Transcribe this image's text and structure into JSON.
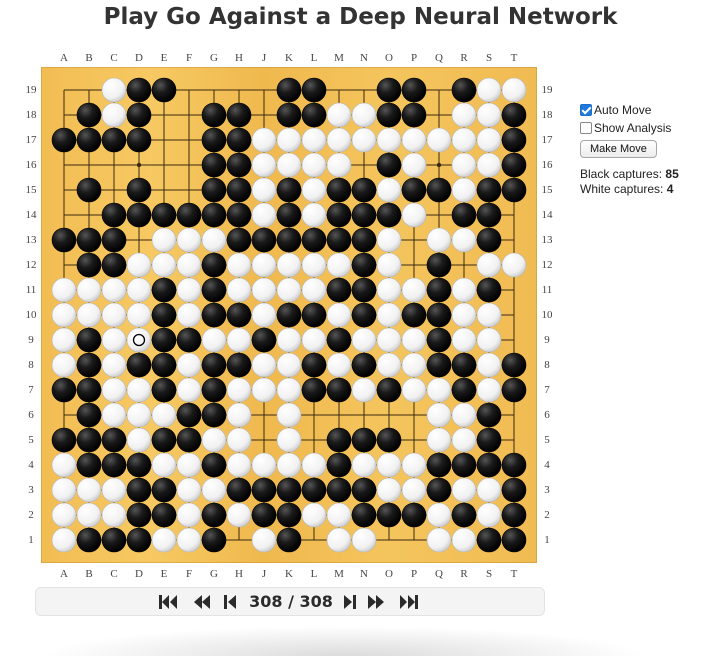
{
  "title": "Play Go Against a Deep Neural Network",
  "board": {
    "columns": [
      "A",
      "B",
      "C",
      "D",
      "E",
      "F",
      "G",
      "H",
      "J",
      "K",
      "L",
      "M",
      "N",
      "O",
      "P",
      "Q",
      "R",
      "S",
      "T"
    ],
    "rows": [
      "19",
      "18",
      "17",
      "16",
      "15",
      "14",
      "13",
      "12",
      "11",
      "10",
      "9",
      "8",
      "7",
      "6",
      "5",
      "4",
      "3",
      "2",
      "1"
    ],
    "stones": [
      "..WBB....BB..BB.BWW",
      ".BWB..BB.BBWWBB.WWB",
      "BBBB..BBWWWWWWWWWWB",
      "......BBWWWW.BW.WWB",
      ".B.B..BBWBWBBWBBWBB",
      "..BBBBBBWBWBBBW.BB.",
      "BBB.WWWBBBBBBW.WWB.",
      ".BBWWWBWWWWWBW.B.WW",
      "WWWWBWBWWWWBBWWBWB.",
      "WWWWBWBBWBBWBWBBWW.",
      "WBWWBBWWBWWBWWWBWW.",
      "WBWBBWBBWWBWBWWBBWB",
      "BBWWBWBWWWBBWBWWBWB",
      ".BWWWBBW.W.....WWB.",
      "BBBWBBWW.W.BBB.WWB.",
      "WBBBWWBWWWWBWWWBBBB",
      "WWWBBWWBBBBBBWWBWWB",
      "WWWBBWBWBBWWBBBWBWB",
      "WBBBWWB.WB.WW..WWBB"
    ],
    "last_move": "D9",
    "star_points": [
      "D4",
      "K4",
      "Q4",
      "D10",
      "K10",
      "Q10",
      "D16",
      "K16",
      "Q16"
    ],
    "colors": {
      "wood": "#f3c259",
      "line": "#3a2a10",
      "black": "#111111",
      "white": "#ffffff"
    }
  },
  "controls": {
    "auto_move_label": "Auto Move",
    "auto_move_checked": true,
    "show_analysis_label": "Show Analysis",
    "show_analysis_checked": false,
    "make_move_label": "Make Move"
  },
  "captures": {
    "black_label": "Black captures:",
    "black_value": "85",
    "white_label": "White captures:",
    "white_value": "4"
  },
  "navigation": {
    "current_move": "308",
    "separator": "/",
    "total_moves": "308",
    "buttons": [
      "first-icon",
      "fast-back-icon",
      "back-icon",
      "forward-icon",
      "fast-forward-icon",
      "last-icon"
    ]
  }
}
